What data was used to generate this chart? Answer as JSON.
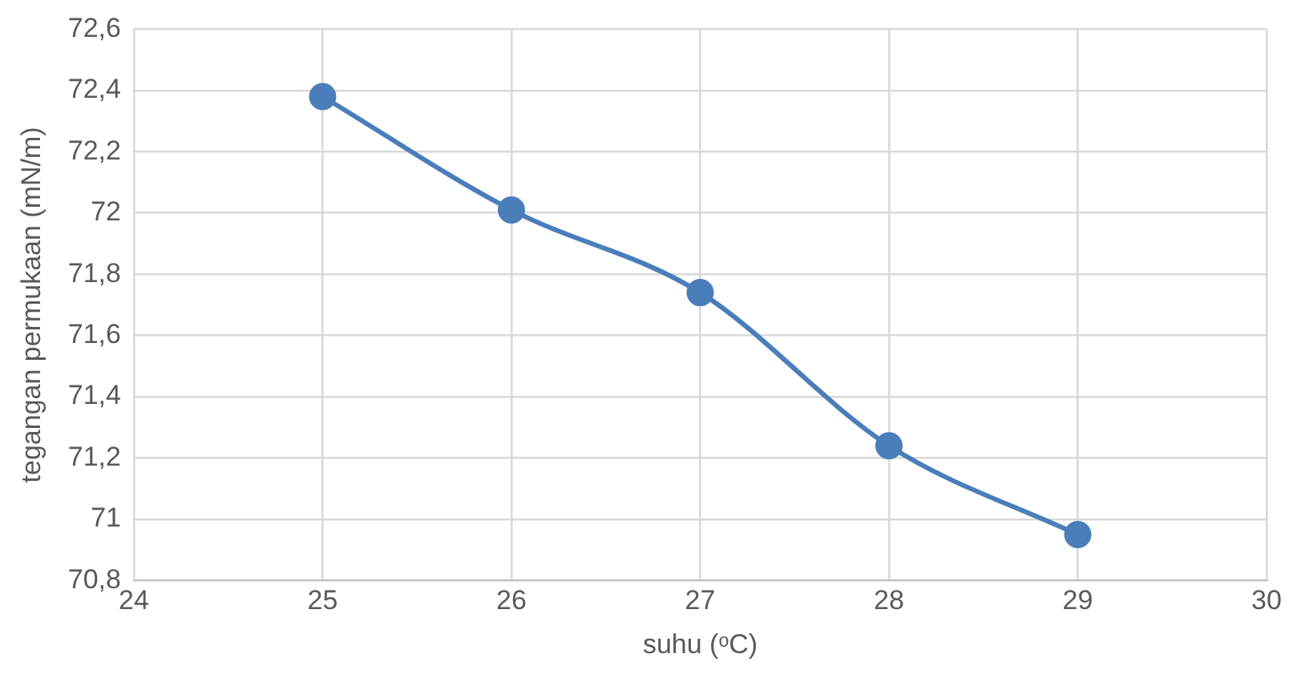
{
  "chart_data": {
    "type": "line",
    "xlabel": "suhu (ᵒC)",
    "ylabel": "tegangan permukaan (mN/m)",
    "x": [
      25,
      26,
      27,
      28,
      29
    ],
    "series": [
      {
        "color": "#4a7ebb",
        "values": [
          72.38,
          72.01,
          71.74,
          71.24,
          70.95
        ]
      }
    ],
    "xlim": [
      24,
      30
    ],
    "xticks": [
      24,
      25,
      26,
      27,
      28,
      29,
      30
    ],
    "ylim": [
      70.8,
      72.6
    ],
    "yticks": [
      {
        "value": 70.8,
        "label": "70,8"
      },
      {
        "value": 71,
        "label": "71"
      },
      {
        "value": 71.2,
        "label": "71,2"
      },
      {
        "value": 71.4,
        "label": "71,4"
      },
      {
        "value": 71.6,
        "label": "71,6"
      },
      {
        "value": 71.8,
        "label": "71,8"
      },
      {
        "value": 72,
        "label": "72"
      },
      {
        "value": 72.2,
        "label": "72,2"
      },
      {
        "value": 72.4,
        "label": "72,4"
      },
      {
        "value": 72.6,
        "label": "72,6"
      }
    ],
    "grid": true,
    "legend": false,
    "marker": "circle",
    "line_style": "solid"
  }
}
